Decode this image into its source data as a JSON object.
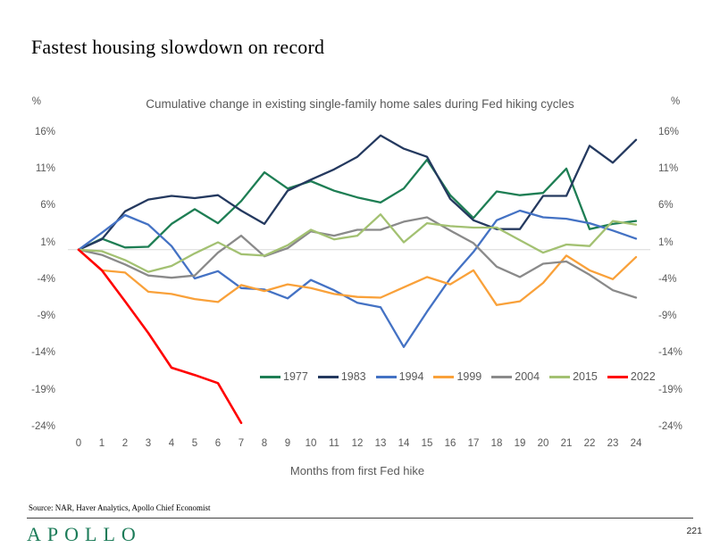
{
  "title": "Fastest housing slowdown on record",
  "chart": {
    "subtitle": "Cumulative change in existing single-family home sales during Fed hiking cycles",
    "x_axis_label": "Months from first Fed hike",
    "unit_label": "%"
  },
  "chart_data": {
    "type": "line",
    "title": "Cumulative change in existing single-family home sales during Fed hiking cycles",
    "xlabel": "Months from first Fed hike",
    "ylabel": "%",
    "ylim": [
      -24,
      16
    ],
    "y_ticks": [
      16,
      11,
      6,
      1,
      -4,
      -9,
      -14,
      -19,
      -24
    ],
    "x_ticks": [
      0,
      1,
      2,
      3,
      4,
      5,
      6,
      7,
      8,
      9,
      10,
      11,
      12,
      13,
      14,
      15,
      16,
      17,
      18,
      19,
      20,
      21,
      22,
      23,
      24
    ],
    "grid": "zero-line-only",
    "legend_position": "bottom-center",
    "series": [
      {
        "name": "1977",
        "color": "#1E7E54",
        "values": [
          0,
          1.5,
          0.3,
          0.4,
          3.5,
          5.5,
          3.6,
          6.6,
          10.5,
          8.3,
          9.3,
          8.0,
          7.1,
          6.4,
          8.3,
          12.2,
          7.4,
          4.3,
          7.9,
          7.4,
          7.7,
          11.0,
          2.8,
          3.5,
          3.9
        ]
      },
      {
        "name": "1983",
        "color": "#24395F",
        "values": [
          0,
          1.4,
          5.2,
          6.8,
          7.3,
          7.0,
          7.4,
          5.3,
          3.5,
          8.0,
          9.5,
          10.9,
          12.6,
          15.5,
          13.7,
          12.6,
          6.9,
          4.0,
          2.8,
          2.8,
          7.3,
          7.3,
          14.1,
          11.8,
          14.9
        ]
      },
      {
        "name": "1994",
        "color": "#4472C4",
        "values": [
          0,
          2.3,
          4.7,
          3.4,
          0.5,
          -3.9,
          -2.9,
          -5.2,
          -5.4,
          -6.6,
          -4.1,
          -5.5,
          -7.2,
          -7.8,
          -13.2,
          -8.4,
          -3.9,
          -0.3,
          4.0,
          5.3,
          4.4,
          4.2,
          3.6,
          2.6,
          1.5
        ]
      },
      {
        "name": "1999",
        "color": "#F9A13A",
        "values": [
          0,
          -2.8,
          -3.1,
          -5.7,
          -6.0,
          -6.7,
          -7.1,
          -4.8,
          -5.6,
          -4.7,
          -5.2,
          -6.0,
          -6.4,
          -6.5,
          -5.1,
          -3.7,
          -4.7,
          -2.8,
          -7.5,
          -7.0,
          -4.5,
          -0.8,
          -2.8,
          -4.0,
          -1.0
        ]
      },
      {
        "name": "2004",
        "color": "#8A8A8A",
        "values": [
          0,
          -0.7,
          -2.0,
          -3.5,
          -3.8,
          -3.5,
          -0.4,
          1.9,
          -0.9,
          0.2,
          2.5,
          1.9,
          2.7,
          2.7,
          3.8,
          4.4,
          2.6,
          0.9,
          -2.3,
          -3.7,
          -1.9,
          -1.6,
          -3.4,
          -5.5,
          -6.5
        ]
      },
      {
        "name": "2015",
        "color": "#A3C172",
        "values": [
          0,
          -0.2,
          -1.4,
          -3.0,
          -2.2,
          -0.5,
          1.0,
          -0.6,
          -0.8,
          0.6,
          2.7,
          1.4,
          1.9,
          4.8,
          1.0,
          3.6,
          3.2,
          3.0,
          3.0,
          1.3,
          -0.4,
          0.7,
          0.5,
          3.9,
          3.4
        ]
      },
      {
        "name": "2022",
        "color": "#FF0000",
        "values": [
          0,
          -2.8,
          -7.0,
          -11.3,
          -16.0,
          -17.0,
          -18.1,
          -23.5
        ]
      }
    ]
  },
  "footer": {
    "source": "Source: NAR, Haver Analytics, Apollo Chief Economist",
    "logo": "APOLLO",
    "page_number": "221"
  },
  "colors": {
    "axis_text": "#595959",
    "zero_line": "#D9D9D9",
    "logo_green": "#1B7B58"
  }
}
